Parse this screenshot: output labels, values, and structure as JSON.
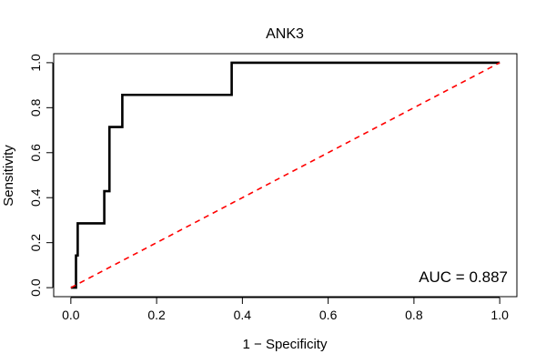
{
  "chart_data": {
    "type": "line",
    "title": "ANK3",
    "xlabel": "1 − Specificity",
    "ylabel": "Sensitivity",
    "xlim": [
      -0.04,
      1.04
    ],
    "ylim": [
      -0.04,
      1.04
    ],
    "xticks": [
      0.0,
      0.2,
      0.4,
      0.6,
      0.8,
      1.0
    ],
    "xtick_labels": [
      "0.0",
      "0.2",
      "0.4",
      "0.6",
      "0.8",
      "1.0"
    ],
    "yticks": [
      0.0,
      0.2,
      0.4,
      0.6,
      0.8,
      1.0
    ],
    "ytick_labels": [
      "0.0",
      "0.2",
      "0.4",
      "0.6",
      "0.8",
      "1.0"
    ],
    "grid": false,
    "series": [
      {
        "name": "ROC curve",
        "color": "#000000",
        "x": [
          0.0,
          0.008,
          0.008,
          0.012,
          0.012,
          0.016,
          0.016,
          0.078,
          0.078,
          0.09,
          0.09,
          0.1,
          0.1,
          0.12,
          0.12,
          0.21,
          0.375,
          0.375,
          1.0
        ],
        "y": [
          0.0,
          0.0,
          0.0,
          0.0,
          0.143,
          0.143,
          0.286,
          0.286,
          0.429,
          0.429,
          0.714,
          0.714,
          0.714,
          0.714,
          0.857,
          0.857,
          0.857,
          1.0,
          1.0
        ]
      },
      {
        "name": "Reference line",
        "color": "#ff0000",
        "dashed": true,
        "x": [
          0.0,
          1.0
        ],
        "y": [
          0.0,
          1.0
        ]
      }
    ],
    "annotation": "AUC = 0.887"
  }
}
